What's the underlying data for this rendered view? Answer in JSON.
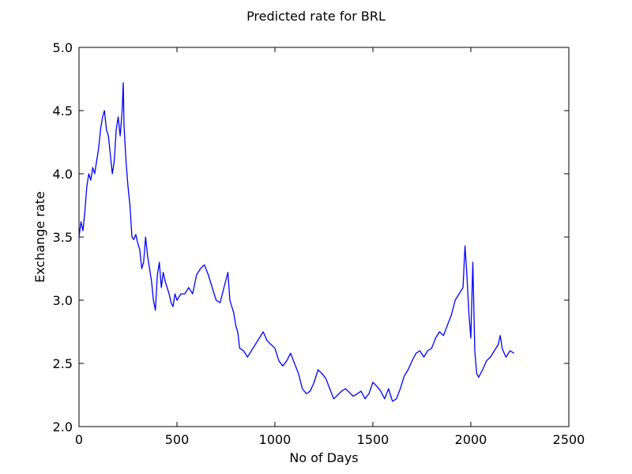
{
  "chart_data": {
    "type": "line",
    "title": "Predicted rate for BRL",
    "xlabel": "No of Days",
    "ylabel": "Exchange rate",
    "xlim": [
      0,
      2500
    ],
    "ylim": [
      2.0,
      5.0
    ],
    "xticks": [
      0,
      500,
      1000,
      1500,
      2000,
      2500
    ],
    "yticks": [
      2.0,
      2.5,
      3.0,
      3.5,
      4.0,
      4.5,
      5.0
    ],
    "xtick_labels": [
      "0",
      "500",
      "1000",
      "1500",
      "2000",
      "2500"
    ],
    "ytick_labels": [
      "2.0",
      "2.5",
      "3.0",
      "3.5",
      "4.0",
      "4.5",
      "5.0"
    ],
    "grid": false,
    "series": [
      {
        "color": "#0000ff",
        "x": [
          0,
          10,
          20,
          30,
          40,
          50,
          60,
          70,
          80,
          90,
          100,
          110,
          120,
          130,
          140,
          150,
          160,
          170,
          180,
          190,
          200,
          210,
          220,
          226,
          230,
          240,
          250,
          260,
          270,
          280,
          290,
          300,
          310,
          320,
          330,
          340,
          350,
          360,
          370,
          380,
          390,
          400,
          410,
          420,
          430,
          440,
          450,
          460,
          470,
          480,
          490,
          500,
          520,
          540,
          560,
          580,
          600,
          620,
          640,
          660,
          680,
          700,
          720,
          740,
          760,
          770,
          780,
          790,
          800,
          810,
          820,
          840,
          860,
          880,
          900,
          920,
          940,
          960,
          980,
          1000,
          1020,
          1040,
          1060,
          1080,
          1100,
          1120,
          1140,
          1160,
          1180,
          1200,
          1220,
          1240,
          1260,
          1280,
          1300,
          1320,
          1340,
          1360,
          1380,
          1400,
          1420,
          1440,
          1460,
          1480,
          1500,
          1520,
          1540,
          1560,
          1580,
          1600,
          1620,
          1640,
          1660,
          1680,
          1700,
          1720,
          1740,
          1760,
          1780,
          1800,
          1820,
          1840,
          1860,
          1880,
          1900,
          1920,
          1940,
          1960,
          1970,
          1980,
          1990,
          2000,
          2010,
          2020,
          2030,
          2040,
          2060,
          2080,
          2100,
          2120,
          2140,
          2150,
          2160,
          2170,
          2180,
          2200,
          2220
        ],
        "y": [
          3.5,
          3.62,
          3.55,
          3.7,
          3.9,
          4.0,
          3.95,
          4.05,
          4.0,
          4.1,
          4.2,
          4.35,
          4.45,
          4.5,
          4.35,
          4.3,
          4.15,
          4.0,
          4.1,
          4.35,
          4.45,
          4.3,
          4.5,
          4.72,
          4.38,
          4.1,
          3.9,
          3.75,
          3.5,
          3.48,
          3.52,
          3.45,
          3.4,
          3.25,
          3.3,
          3.5,
          3.35,
          3.25,
          3.15,
          3.0,
          2.92,
          3.2,
          3.3,
          3.1,
          3.22,
          3.15,
          3.1,
          3.05,
          2.98,
          2.95,
          3.05,
          3.0,
          3.05,
          3.05,
          3.1,
          3.05,
          3.2,
          3.25,
          3.28,
          3.2,
          3.1,
          3.0,
          2.98,
          3.1,
          3.22,
          3.0,
          2.95,
          2.9,
          2.8,
          2.75,
          2.62,
          2.6,
          2.55,
          2.6,
          2.65,
          2.7,
          2.75,
          2.68,
          2.65,
          2.62,
          2.52,
          2.48,
          2.52,
          2.58,
          2.5,
          2.42,
          2.3,
          2.26,
          2.28,
          2.35,
          2.45,
          2.42,
          2.38,
          2.3,
          2.22,
          2.25,
          2.28,
          2.3,
          2.27,
          2.24,
          2.26,
          2.28,
          2.22,
          2.26,
          2.35,
          2.32,
          2.28,
          2.22,
          2.3,
          2.2,
          2.22,
          2.3,
          2.4,
          2.45,
          2.52,
          2.58,
          2.6,
          2.55,
          2.6,
          2.62,
          2.7,
          2.75,
          2.72,
          2.8,
          2.88,
          3.0,
          3.05,
          3.1,
          3.43,
          3.2,
          2.9,
          2.7,
          3.3,
          2.6,
          2.42,
          2.39,
          2.45,
          2.52,
          2.55,
          2.6,
          2.65,
          2.72,
          2.62,
          2.58,
          2.55,
          2.6,
          2.58
        ]
      }
    ]
  }
}
